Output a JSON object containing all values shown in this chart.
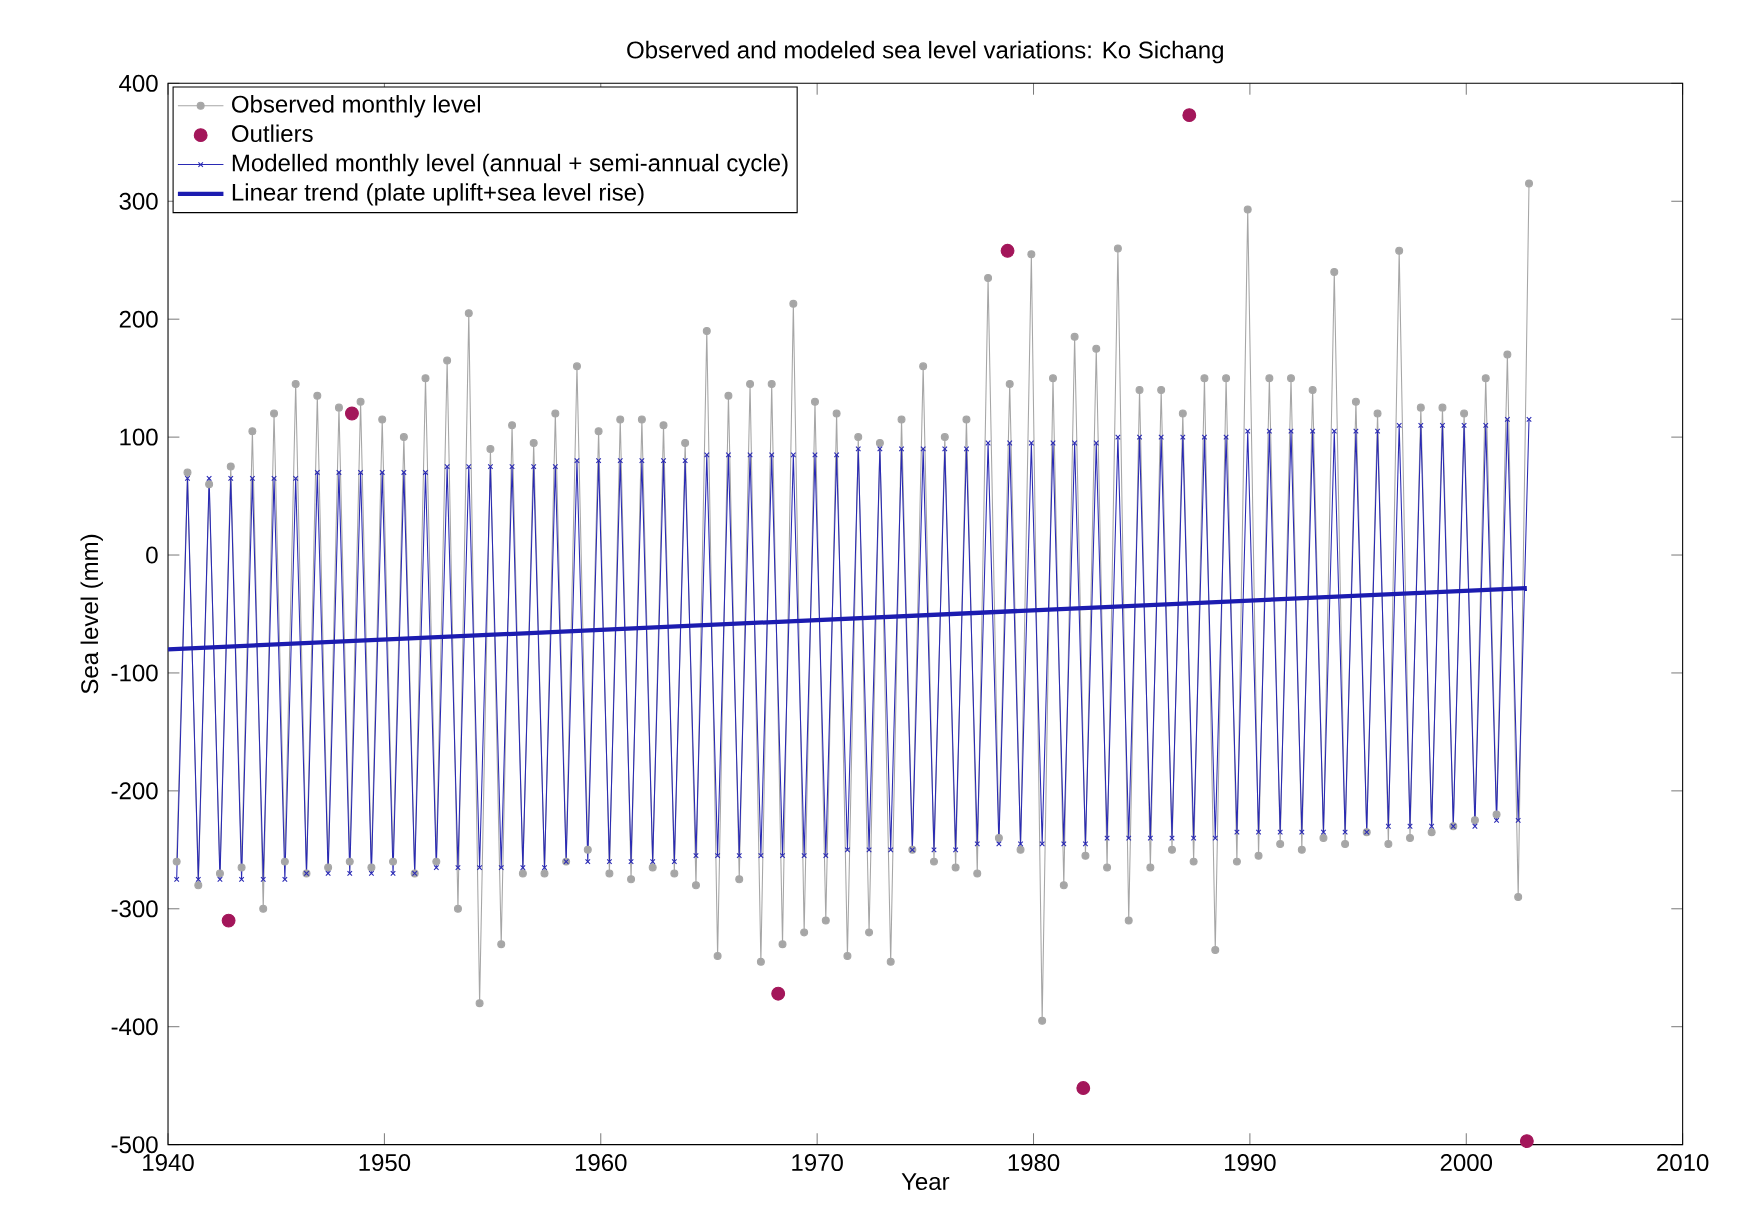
{
  "chart_data": {
    "type": "line",
    "title": "Observed and modeled sea level variations: Ko Sichang",
    "xlabel": "Year",
    "ylabel": "Sea level (mm)",
    "xlim": [
      1940,
      2010
    ],
    "ylim": [
      -500,
      400
    ],
    "xticks": [
      1940,
      1950,
      1960,
      1970,
      1980,
      1990,
      2000,
      2010
    ],
    "yticks": [
      -500,
      -400,
      -300,
      -200,
      -100,
      0,
      100,
      200,
      300,
      400
    ],
    "legend": "top left",
    "series": [
      {
        "name": "Observed monthly level",
        "marker": "circle",
        "color": "#a6a6a6",
        "x": [
          1940.4,
          1940.9,
          1941.4,
          1941.9,
          1942.4,
          1942.9,
          1943.4,
          1943.9,
          1944.4,
          1944.9,
          1945.4,
          1945.9,
          1946.4,
          1946.9,
          1947.4,
          1947.9,
          1948.4,
          1948.9,
          1949.4,
          1949.9,
          1950.4,
          1950.9,
          1951.4,
          1951.9,
          1952.4,
          1952.9,
          1953.4,
          1953.9,
          1954.4,
          1954.9,
          1955.4,
          1955.9,
          1956.4,
          1956.9,
          1957.4,
          1957.9,
          1958.4,
          1958.9,
          1959.4,
          1959.9,
          1960.4,
          1960.9,
          1961.4,
          1961.9,
          1962.4,
          1962.9,
          1963.4,
          1963.9,
          1964.4,
          1964.9,
          1965.4,
          1965.9,
          1966.4,
          1966.9,
          1967.4,
          1967.9,
          1968.4,
          1968.9,
          1969.4,
          1969.9,
          1970.4,
          1970.9,
          1971.4,
          1971.9,
          1972.4,
          1972.9,
          1973.4,
          1973.9,
          1974.4,
          1974.9,
          1975.4,
          1975.9,
          1976.4,
          1976.9,
          1977.4,
          1977.9,
          1978.4,
          1978.9,
          1979.4,
          1979.9,
          1980.4,
          1980.9,
          1981.4,
          1981.9,
          1982.4,
          1982.9,
          1983.4,
          1983.9,
          1984.4,
          1984.9,
          1985.4,
          1985.9,
          1986.4,
          1986.9,
          1987.4,
          1987.9,
          1988.4,
          1988.9,
          1989.4,
          1989.9,
          1990.4,
          1990.9,
          1991.4,
          1991.9,
          1992.4,
          1992.9,
          1993.4,
          1993.9,
          1994.4,
          1994.9,
          1995.4,
          1995.9,
          1996.4,
          1996.9,
          1997.4,
          1997.9,
          1998.4,
          1998.9,
          1999.4,
          1999.9,
          2000.4,
          2000.9,
          2001.4,
          2001.9,
          2002.4,
          2002.9
        ],
        "values": [
          -260,
          70,
          -280,
          60,
          -270,
          75,
          -265,
          105,
          -300,
          120,
          -260,
          145,
          -270,
          135,
          -265,
          125,
          -260,
          130,
          -265,
          115,
          -260,
          100,
          -270,
          150,
          -260,
          165,
          -300,
          205,
          -380,
          90,
          -330,
          110,
          -270,
          95,
          -270,
          120,
          -260,
          160,
          -250,
          105,
          -270,
          115,
          -275,
          115,
          -265,
          110,
          -270,
          95,
          -280,
          190,
          -340,
          135,
          -275,
          145,
          -345,
          145,
          -330,
          213,
          -320,
          130,
          -310,
          120,
          -340,
          100,
          -320,
          95,
          -345,
          115,
          -250,
          160,
          -260,
          100,
          -265,
          115,
          -270,
          235,
          -240,
          145,
          -250,
          255,
          -395,
          150,
          -280,
          185,
          -255,
          175,
          -265,
          260,
          -310,
          140,
          -265,
          140,
          -250,
          120,
          -260,
          150,
          -335,
          150,
          -260,
          293,
          -255,
          150,
          -245,
          150,
          -250,
          140,
          -240,
          240,
          -245,
          130,
          -235,
          120,
          -245,
          258,
          -240,
          125,
          -235,
          125,
          -230,
          120,
          -225,
          150,
          -220,
          170,
          -290,
          315
        ]
      },
      {
        "name": "Outliers",
        "type": "scatter",
        "marker": "circle",
        "color": "#a3165a",
        "x": [
          1942.8,
          1948.5,
          1968.2,
          1978.8,
          1982.3,
          1987.2,
          2002.8
        ],
        "values": [
          -310,
          120,
          -372,
          258,
          -452,
          373,
          -497
        ]
      },
      {
        "name": "Modelled monthly level (annual + semi-annual cycle)",
        "marker": "cross",
        "color": "#2a2ab4",
        "x": [
          1940.4,
          1940.9,
          1941.4,
          1941.9,
          1942.4,
          1942.9,
          1943.4,
          1943.9,
          1944.4,
          1944.9,
          1945.4,
          1945.9,
          1946.4,
          1946.9,
          1947.4,
          1947.9,
          1948.4,
          1948.9,
          1949.4,
          1949.9,
          1950.4,
          1950.9,
          1951.4,
          1951.9,
          1952.4,
          1952.9,
          1953.4,
          1953.9,
          1954.4,
          1954.9,
          1955.4,
          1955.9,
          1956.4,
          1956.9,
          1957.4,
          1957.9,
          1958.4,
          1958.9,
          1959.4,
          1959.9,
          1960.4,
          1960.9,
          1961.4,
          1961.9,
          1962.4,
          1962.9,
          1963.4,
          1963.9,
          1964.4,
          1964.9,
          1965.4,
          1965.9,
          1966.4,
          1966.9,
          1967.4,
          1967.9,
          1968.4,
          1968.9,
          1969.4,
          1969.9,
          1970.4,
          1970.9,
          1971.4,
          1971.9,
          1972.4,
          1972.9,
          1973.4,
          1973.9,
          1974.4,
          1974.9,
          1975.4,
          1975.9,
          1976.4,
          1976.9,
          1977.4,
          1977.9,
          1978.4,
          1978.9,
          1979.4,
          1979.9,
          1980.4,
          1980.9,
          1981.4,
          1981.9,
          1982.4,
          1982.9,
          1983.4,
          1983.9,
          1984.4,
          1984.9,
          1985.4,
          1985.9,
          1986.4,
          1986.9,
          1987.4,
          1987.9,
          1988.4,
          1988.9,
          1989.4,
          1989.9,
          1990.4,
          1990.9,
          1991.4,
          1991.9,
          1992.4,
          1992.9,
          1993.4,
          1993.9,
          1994.4,
          1994.9,
          1995.4,
          1995.9,
          1996.4,
          1996.9,
          1997.4,
          1997.9,
          1998.4,
          1998.9,
          1999.4,
          1999.9,
          2000.4,
          2000.9,
          2001.4,
          2001.9,
          2002.4,
          2002.9
        ],
        "values": [
          -275,
          65,
          -275,
          65,
          -275,
          65,
          -275,
          65,
          -275,
          65,
          -275,
          65,
          -270,
          70,
          -270,
          70,
          -270,
          70,
          -270,
          70,
          -270,
          70,
          -270,
          70,
          -265,
          75,
          -265,
          75,
          -265,
          75,
          -265,
          75,
          -265,
          75,
          -265,
          75,
          -260,
          80,
          -260,
          80,
          -260,
          80,
          -260,
          80,
          -260,
          80,
          -260,
          80,
          -255,
          85,
          -255,
          85,
          -255,
          85,
          -255,
          85,
          -255,
          85,
          -255,
          85,
          -255,
          85,
          -250,
          90,
          -250,
          90,
          -250,
          90,
          -250,
          90,
          -250,
          90,
          -250,
          90,
          -245,
          95,
          -245,
          95,
          -245,
          95,
          -245,
          95,
          -245,
          95,
          -245,
          95,
          -240,
          100,
          -240,
          100,
          -240,
          100,
          -240,
          100,
          -240,
          100,
          -240,
          100,
          -235,
          105,
          -235,
          105,
          -235,
          105,
          -235,
          105,
          -235,
          105,
          -235,
          105,
          -235,
          105,
          -230,
          110,
          -230,
          110,
          -230,
          110,
          -230,
          110,
          -230,
          110,
          -225,
          115,
          -225,
          115
        ]
      },
      {
        "name": "Linear trend (plate uplift+sea level rise)",
        "marker": "none",
        "color": "#1c1cb0",
        "x": [
          1940,
          2002.8
        ],
        "values": [
          -80,
          -28
        ]
      }
    ]
  }
}
